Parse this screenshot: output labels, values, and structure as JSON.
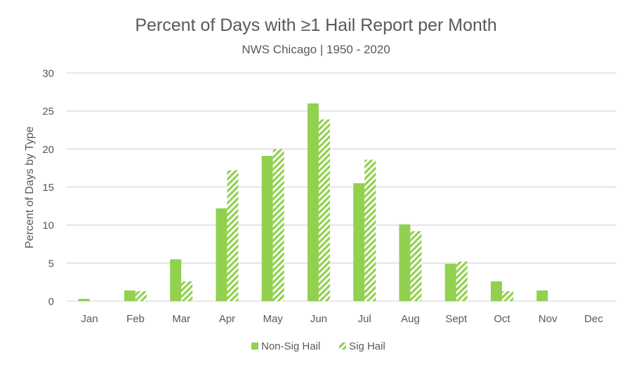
{
  "chart_data": {
    "type": "bar",
    "title": "Percent of Days with ≥1 Hail Report per Month",
    "subtitle": "NWS Chicago | 1950 - 2020",
    "xlabel": "",
    "ylabel": "Percent of Days by Type",
    "ylim": [
      0,
      30
    ],
    "yticks": [
      0,
      5,
      10,
      15,
      20,
      25,
      30
    ],
    "grid": true,
    "legend_position": "bottom",
    "categories": [
      "Jan",
      "Feb",
      "Mar",
      "Apr",
      "May",
      "Jun",
      "Jul",
      "Aug",
      "Sept",
      "Oct",
      "Nov",
      "Dec"
    ],
    "series": [
      {
        "name": "Non-Sig Hail",
        "pattern": "solid",
        "color": "#92d050",
        "values": [
          0.3,
          1.4,
          5.5,
          12.2,
          19.1,
          26.0,
          15.5,
          10.1,
          4.9,
          2.6,
          1.4,
          0
        ]
      },
      {
        "name": "Sig Hail",
        "pattern": "diagonal-stripes",
        "color": "#92d050",
        "values": [
          0,
          1.3,
          2.6,
          17.2,
          20.0,
          23.9,
          18.6,
          9.2,
          5.2,
          1.3,
          0,
          0
        ]
      }
    ],
    "colors": {
      "gridline": "#d9d9d9",
      "axis_text": "#595959",
      "title_text": "#595959"
    }
  }
}
